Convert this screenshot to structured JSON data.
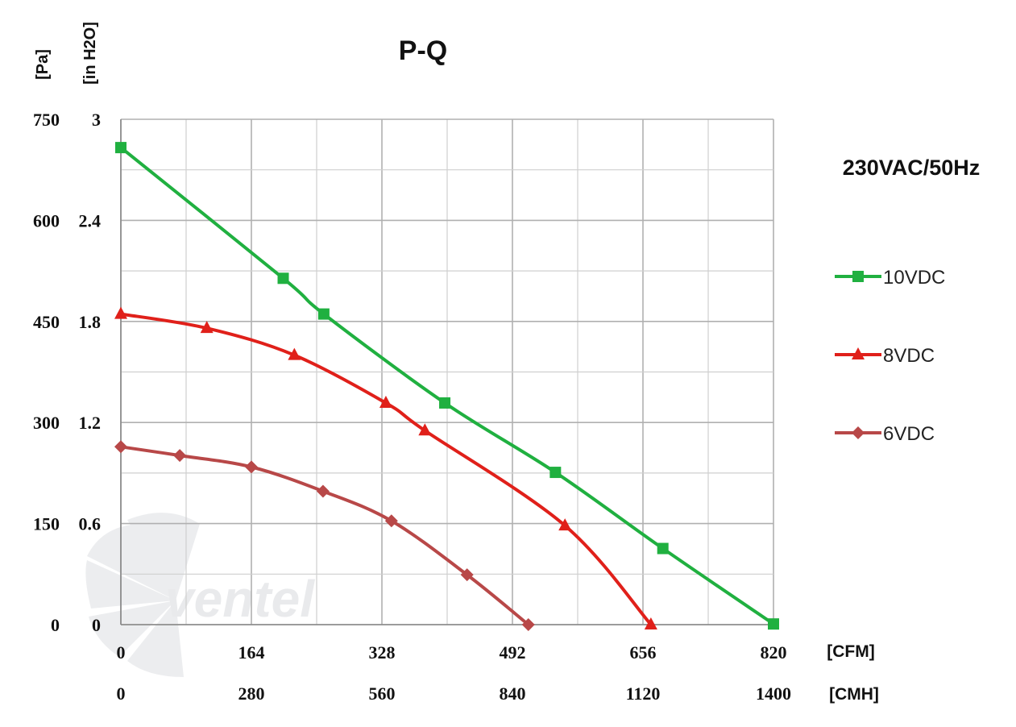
{
  "chart_data": {
    "type": "line",
    "title": "P-Q",
    "subtitle": "230VAC/50Hz",
    "y_unit_primary": "[Pa]",
    "y_unit_secondary": "[in H2O]",
    "x_unit_primary": "[CFM]",
    "x_unit_secondary": "[CMH]",
    "y_ticks_primary": [
      "0",
      "150",
      "300",
      "450",
      "600",
      "750"
    ],
    "y_ticks_secondary": [
      "0",
      "0.6",
      "1.2",
      "1.8",
      "2.4",
      "3"
    ],
    "x_ticks_primary": [
      "0",
      "164",
      "328",
      "492",
      "656",
      "820"
    ],
    "x_ticks_secondary": [
      "0",
      "280",
      "560",
      "840",
      "1120",
      "1400"
    ],
    "xlim": [
      0,
      820
    ],
    "ylim": [
      0,
      750
    ],
    "grid": true,
    "legend_position": "right",
    "watermark": "ventel",
    "series": [
      {
        "name": "10VDC",
        "color": "#20b040",
        "marker": "square",
        "x": [
          0,
          204,
          255,
          407,
          546,
          681,
          820
        ],
        "y": [
          708,
          514,
          461,
          329,
          226,
          113,
          1
        ]
      },
      {
        "name": "8VDC",
        "color": "#e0201a",
        "marker": "triangle",
        "x": [
          0,
          108,
          218,
          333,
          382,
          558,
          666
        ],
        "y": [
          461,
          440,
          400,
          329,
          288,
          147,
          0
        ]
      },
      {
        "name": "6VDC",
        "color": "#b84848",
        "marker": "diamond",
        "x": [
          0,
          74,
          164,
          254,
          340,
          435,
          512
        ],
        "y": [
          264,
          251,
          234,
          198,
          154,
          74,
          0
        ]
      }
    ]
  }
}
